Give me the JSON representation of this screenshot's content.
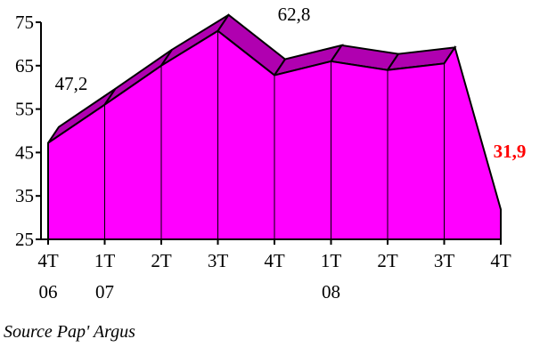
{
  "chart_data": {
    "type": "area",
    "style": "3d-area",
    "categories": [
      [
        "4T",
        "06"
      ],
      [
        "1T",
        "07"
      ],
      [
        "2T",
        ""
      ],
      [
        "3T",
        ""
      ],
      [
        "4T",
        ""
      ],
      [
        "1T",
        "08"
      ],
      [
        "2T",
        ""
      ],
      [
        "3T",
        ""
      ],
      [
        "4T",
        ""
      ]
    ],
    "values": [
      47.2,
      56,
      65,
      73,
      62.8,
      66,
      64,
      65.5,
      31.9
    ],
    "ylim": [
      25,
      75
    ],
    "yticks": [
      25,
      35,
      45,
      55,
      65,
      75
    ],
    "data_labels": [
      {
        "index": 0,
        "text": "47,2",
        "highlight": false
      },
      {
        "index": 4,
        "text": "62,8",
        "highlight": false
      },
      {
        "index": 8,
        "text": "31,9",
        "highlight": true
      }
    ],
    "grid": false,
    "legend": "none",
    "colors": {
      "fill": "#ff00ff",
      "top_face": "#b000b0",
      "outline": "#000000",
      "highlight_label": "#ff0000"
    }
  },
  "source": "Source Pap' Argus"
}
